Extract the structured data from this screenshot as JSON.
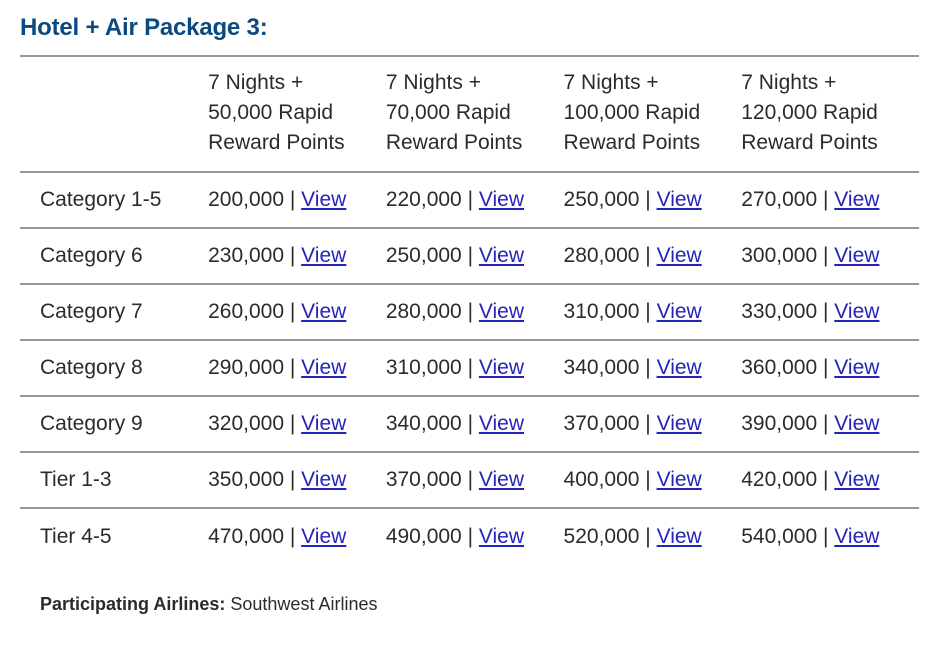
{
  "title": "Hotel + Air Package 3:",
  "colors": {
    "title": "#0a4a80",
    "link": "#2424b8",
    "rule": "#999999"
  },
  "table": {
    "columns": [
      [
        "7 Nights +",
        "50,000 Rapid",
        "Reward Points"
      ],
      [
        "7 Nights +",
        "70,000 Rapid",
        "Reward Points"
      ],
      [
        "7 Nights +",
        "100,000 Rapid",
        "Reward Points"
      ],
      [
        "7 Nights +",
        "120,000 Rapid",
        "Reward Points"
      ]
    ],
    "link_label": "View",
    "rows": [
      {
        "label": "Category 1-5",
        "values": [
          "200,000",
          "220,000",
          "250,000",
          "270,000"
        ]
      },
      {
        "label": "Category 6",
        "values": [
          "230,000",
          "250,000",
          "280,000",
          "300,000"
        ]
      },
      {
        "label": "Category 7",
        "values": [
          "260,000",
          "280,000",
          "310,000",
          "330,000"
        ]
      },
      {
        "label": "Category 8",
        "values": [
          "290,000",
          "310,000",
          "340,000",
          "360,000"
        ]
      },
      {
        "label": "Category 9",
        "values": [
          "320,000",
          "340,000",
          "370,000",
          "390,000"
        ]
      },
      {
        "label": "Tier 1-3",
        "values": [
          "350,000",
          "370,000",
          "400,000",
          "420,000"
        ]
      },
      {
        "label": "Tier 4-5",
        "values": [
          "470,000",
          "490,000",
          "520,000",
          "540,000"
        ]
      }
    ]
  },
  "footer": {
    "label": "Participating Airlines:",
    "value": "Southwest Airlines"
  }
}
